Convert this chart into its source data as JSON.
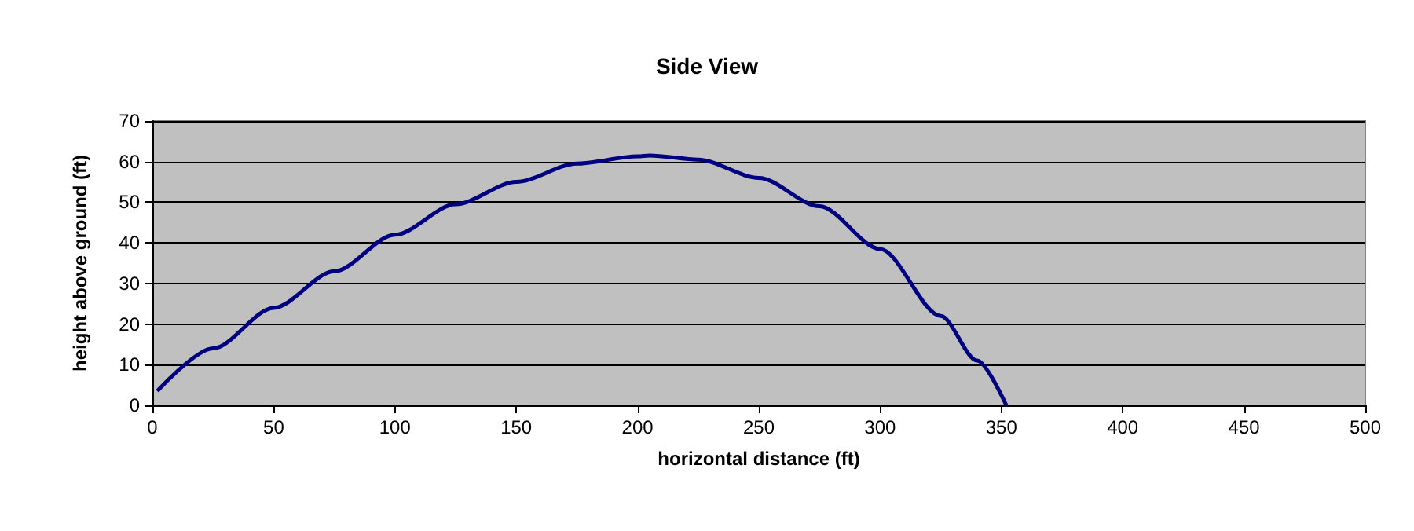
{
  "chart_data": {
    "type": "line",
    "title": "Side View",
    "xlabel": "horizontal distance (ft)",
    "ylabel": "height above ground (ft)",
    "x": [
      2,
      25,
      50,
      75,
      100,
      125,
      150,
      175,
      200,
      205,
      225,
      250,
      275,
      300,
      325,
      340,
      352
    ],
    "series": [
      {
        "color": "#000080",
        "values": [
          3.5,
          14,
          24,
          33,
          42,
          49.5,
          55,
          59.5,
          61.3,
          61.5,
          60.5,
          56,
          49,
          38.5,
          22,
          11,
          0
        ]
      }
    ],
    "xlim": [
      0,
      500
    ],
    "xticks": [
      0,
      50,
      100,
      150,
      200,
      250,
      300,
      350,
      400,
      450,
      500
    ],
    "ylim": [
      0,
      70
    ],
    "yticks": [
      0,
      10,
      20,
      30,
      40,
      50,
      60,
      70
    ],
    "grid": "y",
    "marker": "none",
    "line_style": "solid"
  }
}
